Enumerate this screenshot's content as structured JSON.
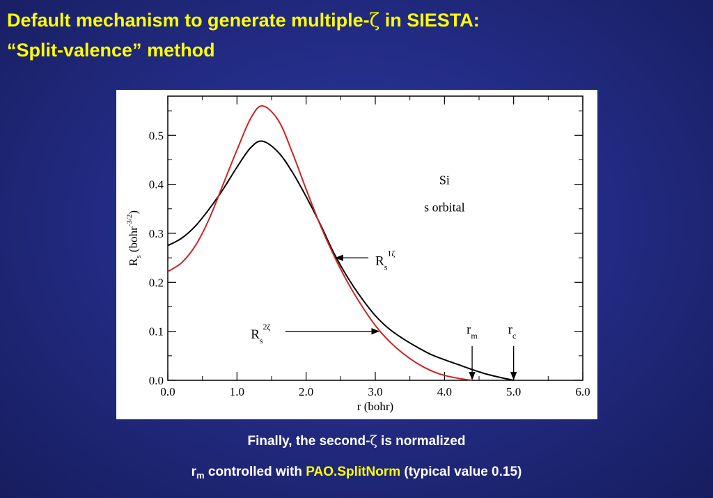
{
  "slide": {
    "title_line1_a": "Default mechanism to generate multiple-",
    "title_zeta": "ζ",
    "title_line1_b": " in SIESTA:",
    "title_line2": "“Split-valence” method",
    "caption1_a": "Finally, the second-",
    "caption1_zeta": "ζ",
    "caption1_b": " is normalized",
    "caption2_r": "r",
    "caption2_sub": "m",
    "caption2_a": " controlled with ",
    "caption2_keyword": "PAO.SplitNorm",
    "caption2_b": " (typical value 0.15)"
  },
  "colors": {
    "title": "#ffff00",
    "keyword": "#ffff00",
    "caption": "#ffffff",
    "curve_1zeta": "#000000",
    "curve_2zeta": "#cc2222"
  },
  "chart_data": {
    "type": "line",
    "xlabel": "r (bohr)",
    "ylabel": "R_s (bohr^-3/2)",
    "xlim": [
      0,
      6
    ],
    "ylim": [
      0,
      0.58
    ],
    "x_ticks": [
      "0.0",
      "1.0",
      "2.0",
      "3.0",
      "4.0",
      "5.0",
      "6.0"
    ],
    "y_ticks": [
      "0.0",
      "0.1",
      "0.2",
      "0.3",
      "0.4",
      "0.5"
    ],
    "grid": false,
    "annotations": {
      "element": "Si",
      "orbital": "s orbital",
      "label_1zeta": {
        "base": "R",
        "sub": "s",
        "sup": "1ζ"
      },
      "label_2zeta": {
        "base": "R",
        "sub": "s",
        "sup": "2ζ"
      },
      "rm": {
        "base": "r",
        "sub": "m",
        "x": 4.4
      },
      "rc": {
        "base": "r",
        "sub": "c",
        "x": 5.0
      }
    },
    "series": [
      {
        "name": "R_s 1ζ",
        "color": "#000000",
        "points": [
          [
            0.0,
            0.275
          ],
          [
            0.2,
            0.29
          ],
          [
            0.4,
            0.315
          ],
          [
            0.6,
            0.35
          ],
          [
            0.8,
            0.39
          ],
          [
            1.0,
            0.435
          ],
          [
            1.2,
            0.475
          ],
          [
            1.37,
            0.488
          ],
          [
            1.6,
            0.465
          ],
          [
            1.8,
            0.425
          ],
          [
            2.0,
            0.375
          ],
          [
            2.2,
            0.32
          ],
          [
            2.4,
            0.26
          ],
          [
            2.6,
            0.21
          ],
          [
            2.8,
            0.168
          ],
          [
            3.0,
            0.132
          ],
          [
            3.2,
            0.105
          ],
          [
            3.4,
            0.085
          ],
          [
            3.6,
            0.068
          ],
          [
            3.8,
            0.053
          ],
          [
            4.0,
            0.042
          ],
          [
            4.2,
            0.032
          ],
          [
            4.4,
            0.022
          ],
          [
            4.6,
            0.013
          ],
          [
            4.8,
            0.006
          ],
          [
            5.0,
            0.0
          ]
        ]
      },
      {
        "name": "R_s 2ζ",
        "color": "#cc2222",
        "points": [
          [
            0.0,
            0.222
          ],
          [
            0.2,
            0.24
          ],
          [
            0.4,
            0.275
          ],
          [
            0.6,
            0.33
          ],
          [
            0.8,
            0.4
          ],
          [
            1.0,
            0.47
          ],
          [
            1.2,
            0.535
          ],
          [
            1.37,
            0.56
          ],
          [
            1.6,
            0.53
          ],
          [
            1.8,
            0.465
          ],
          [
            2.0,
            0.39
          ],
          [
            2.2,
            0.318
          ],
          [
            2.4,
            0.255
          ],
          [
            2.6,
            0.2
          ],
          [
            2.8,
            0.153
          ],
          [
            3.0,
            0.112
          ],
          [
            3.2,
            0.08
          ],
          [
            3.4,
            0.055
          ],
          [
            3.6,
            0.035
          ],
          [
            3.8,
            0.02
          ],
          [
            4.0,
            0.01
          ],
          [
            4.2,
            0.004
          ],
          [
            4.4,
            0.0
          ]
        ]
      }
    ]
  }
}
